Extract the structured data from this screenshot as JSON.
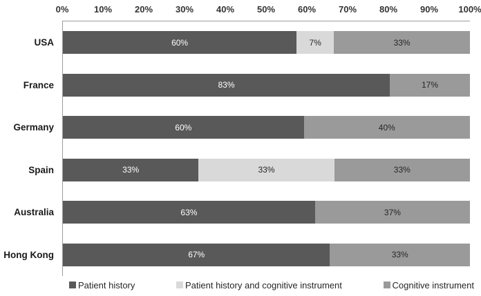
{
  "chart_data": {
    "type": "bar",
    "orientation": "horizontal",
    "stacked": true,
    "title": "",
    "categories": [
      "USA",
      "France",
      "Germany",
      "Spain",
      "Australia",
      "Hong Kong"
    ],
    "series": [
      {
        "name": "Patient history",
        "color": "#595959",
        "label_color": "#ffffff",
        "values": [
          60,
          83,
          60,
          33,
          63,
          67
        ]
      },
      {
        "name": "Patient history and cognitive instrument",
        "color": "#d9d9d9",
        "label_color": "#262626",
        "values": [
          7,
          0,
          0,
          33,
          0,
          0
        ]
      },
      {
        "name": "Cognitive instrument",
        "color": "#9a9a9a",
        "label_color": "#262626",
        "values": [
          33,
          17,
          40,
          33,
          37,
          33
        ]
      }
    ],
    "x_axis": {
      "position": "top",
      "range": [
        0,
        100
      ],
      "tick_labels": [
        "0%",
        "10%",
        "20%",
        "30%",
        "40%",
        "50%",
        "60%",
        "70%",
        "80%",
        "90%",
        "100%"
      ]
    },
    "value_label_suffix": "%",
    "legend_position": "bottom",
    "grid": false,
    "colors": {
      "axis_line": "#9c9c9c",
      "tick_text": "#333333",
      "category_text": "#1a1a1a",
      "legend_text": "#262626",
      "background": "#ffffff"
    }
  }
}
